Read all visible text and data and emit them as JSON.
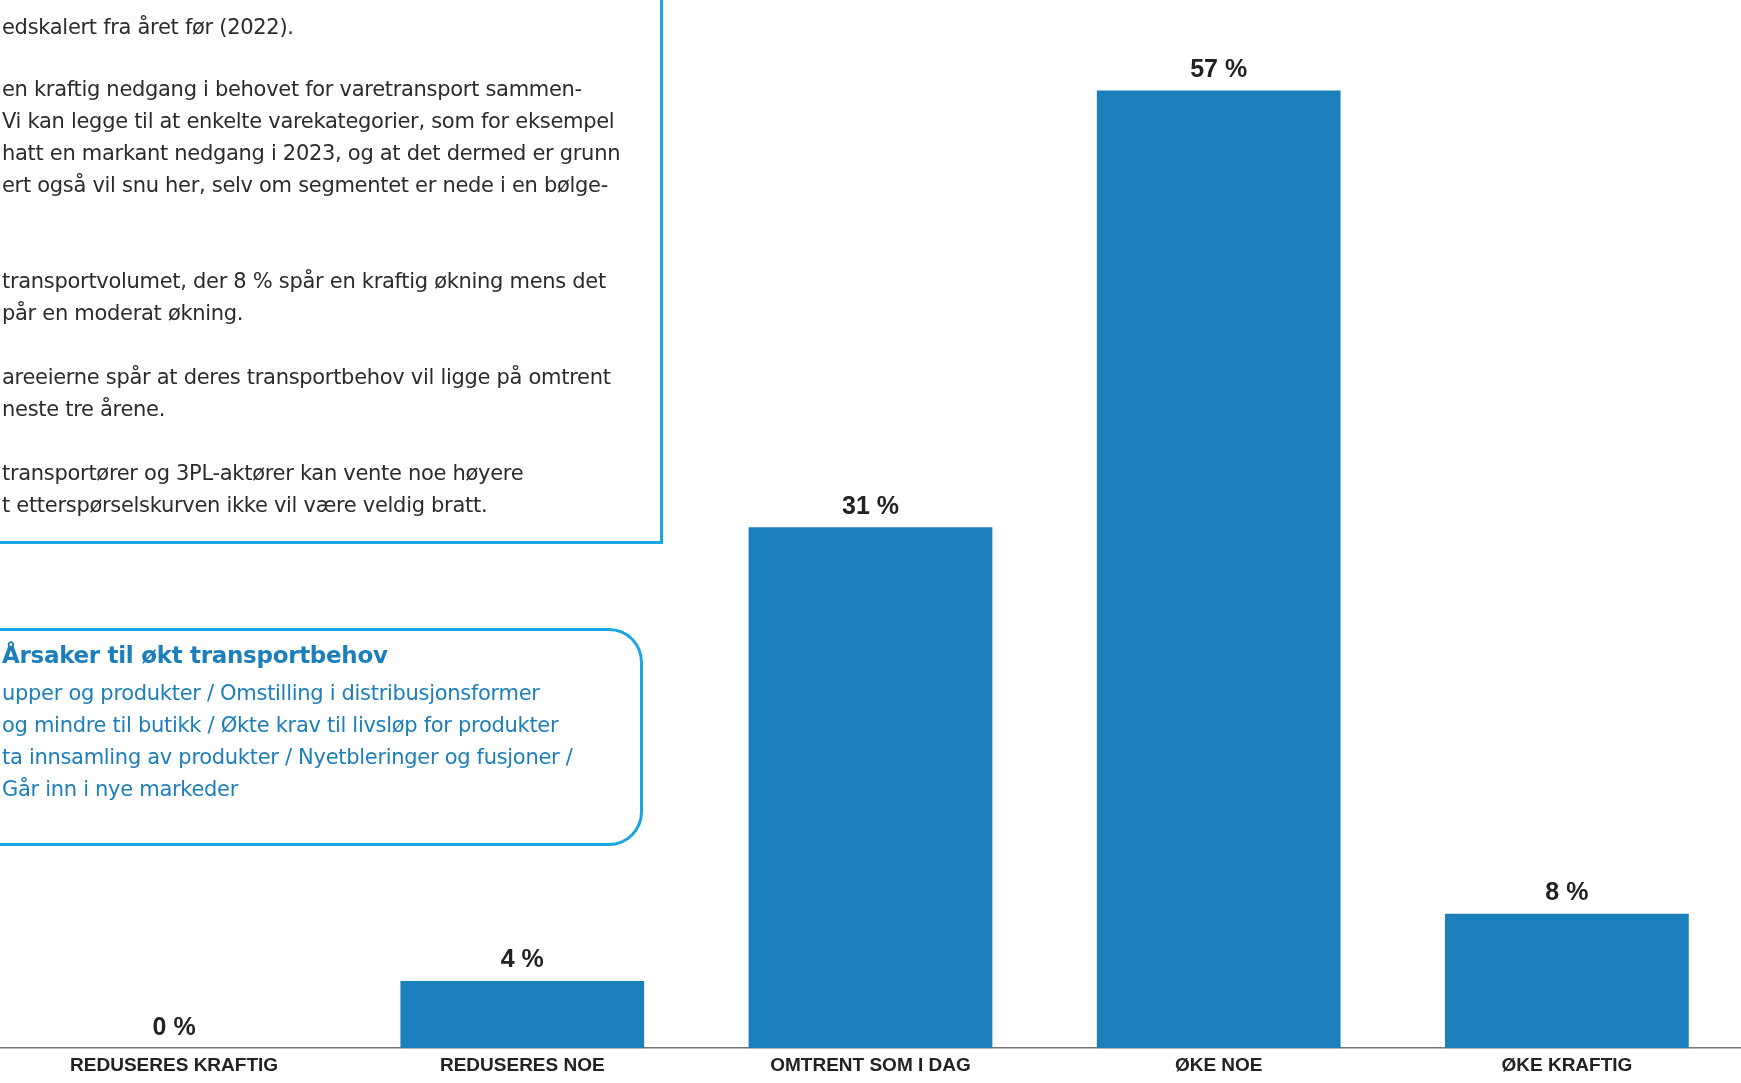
{
  "chart_data": {
    "type": "bar",
    "categories": [
      "REDUSERES KRAFTIG",
      "REDUSERES NOE",
      "OMTRENT SOM I DAG",
      "ØKE NOE",
      "ØKE KRAFTIG"
    ],
    "values": [
      0,
      4,
      31,
      57,
      8
    ],
    "value_labels": [
      "0 %",
      "4 %",
      "31 %",
      "57 %",
      "8 %"
    ],
    "color": "#1a7fba",
    "grid": false,
    "legend": false,
    "annotations": [
      "edskalert fra året før (2022).",
      "en kraftig nedgang i behovet for varetransport sammen-\nVi kan legge til at enkelte varekategorier, som for eksempel\nhatt en markant nedgang i 2023, og at det dermed er grunn\nert også vil snu her, selv om segmentet er nede i en bølge-",
      "transportvolumet, der 8 % spår en kraftig økning mens det\npår en moderat økning.",
      "areeierne spår at deres transportbehov vil ligge på omtrent\nneste tre årene.",
      "transportører og 3PL-aktører kan vente noe høyere\nt etterspørselskurven ikke vil være veldig bratt.",
      "Årsaker til økt transportbehov",
      "upper og produkter / Omstilling i distribusjonsformer\nog mindre til butikk / Økte krav til livsløp for produkter\nta innsamling av produkter / Nyetbleringer og fusjoner /\nGår inn i nye markeder"
    ]
  }
}
